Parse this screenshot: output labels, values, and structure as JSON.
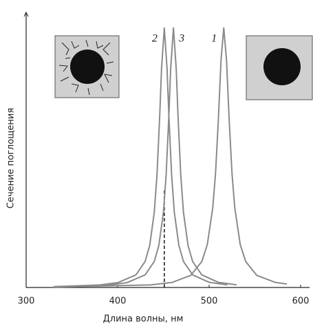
{
  "chart_data": {
    "type": "line",
    "x_label": "Длина волны, нм",
    "y_label": "Сечение поглощения",
    "xlim": [
      300,
      600
    ],
    "xticks": [
      300,
      400,
      500,
      600
    ],
    "ylim": [
      0,
      1.06
    ],
    "series": [
      {
        "name": "1",
        "color": "#8a8a8a",
        "x": [
          330,
          436,
          460,
          480,
          492,
          498,
          504,
          507,
          510,
          513,
          516,
          519,
          522,
          525,
          528,
          534,
          540,
          552,
          572,
          585
        ],
        "values": [
          0.0018,
          0.0099,
          0.02,
          0.047,
          0.1,
          0.165,
          0.308,
          0.44,
          0.64,
          0.877,
          1,
          0.877,
          0.64,
          0.44,
          0.308,
          0.165,
          0.1,
          0.047,
          0.02,
          0.0133
        ]
      },
      {
        "name": "2",
        "color": "#8a8a8a",
        "x": [
          330,
          380,
          400,
          420,
          430,
          435,
          440,
          443,
          446,
          448,
          451,
          454,
          456,
          459,
          462,
          467,
          472,
          482,
          500,
          520
        ],
        "values": [
          0.0033,
          0.0096,
          0.0185,
          0.0485,
          0.1,
          0.161,
          0.288,
          0.433,
          0.662,
          0.845,
          1,
          0.845,
          0.662,
          0.433,
          0.288,
          0.161,
          0.1,
          0.0485,
          0.02,
          0.0102
        ]
      },
      {
        "name": "3",
        "color": "#8a8a8a",
        "x": [
          340,
          390,
          410,
          430,
          440,
          445,
          450,
          453,
          456,
          458,
          461,
          464,
          466,
          469,
          472,
          477,
          482,
          492,
          510,
          530
        ],
        "values": [
          0.0033,
          0.0096,
          0.0185,
          0.0485,
          0.1,
          0.161,
          0.288,
          0.433,
          0.662,
          0.845,
          1,
          0.845,
          0.662,
          0.433,
          0.288,
          0.161,
          0.1,
          0.0485,
          0.02,
          0.0102
        ]
      }
    ],
    "dashed_line": {
      "x": 451,
      "y": 0.38
    }
  }
}
